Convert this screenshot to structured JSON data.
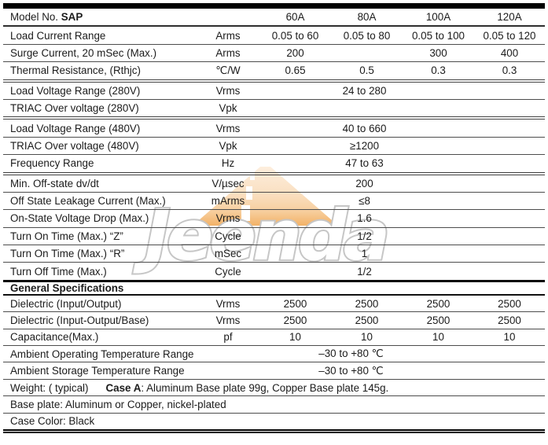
{
  "watermark": {
    "text": "Jeenda",
    "stroke_color": "#c6c6c6",
    "road_color_top": "#fdeedd",
    "road_color_bottom": "#f2b267"
  },
  "table": {
    "rows": [
      {
        "kind": "cols",
        "param_prefix": "Model No. ",
        "param_bold": "SAP",
        "unit": "",
        "values": [
          "60A",
          "80A",
          "100A",
          "120A"
        ],
        "section": "sa",
        "border": "medium"
      },
      {
        "kind": "cols",
        "param": "Load Current Range",
        "unit": "Arms",
        "values": [
          "0.05 to 60",
          "0.05 to 80",
          "0.05 to 100",
          "0.05 to 120"
        ],
        "section": "sa",
        "border": "thin"
      },
      {
        "kind": "cols",
        "param": "Surge Current, 20 mSec (Max.)",
        "unit": "Arms",
        "values": [
          "200",
          "",
          "300",
          "400"
        ],
        "section": "sa",
        "border": "thin"
      },
      {
        "kind": "cols",
        "param": "Thermal Resistance, (Rthjc)",
        "unit": "℃/W",
        "values": [
          "0.65",
          "0.5",
          "0.3",
          "0.3"
        ],
        "section": "sa",
        "border": "double"
      },
      {
        "kind": "span4",
        "param": "Load Voltage Range (280V)",
        "unit": "Vrms",
        "value": "24 to 280",
        "section": "sa",
        "border": "thin"
      },
      {
        "kind": "span4",
        "param": "TRIAC Over voltage (280V)",
        "unit": "Vpk",
        "value": "",
        "section": "sa",
        "border": "double"
      },
      {
        "kind": "span4",
        "param": "Load Voltage Range (480V)",
        "unit": "Vrms",
        "value": "40 to 660",
        "section": "sa",
        "border": "thin"
      },
      {
        "kind": "span4",
        "param": "TRIAC Over voltage (480V)",
        "unit": "Vpk",
        "value": "≥1200",
        "section": "sa",
        "border": "thin"
      },
      {
        "kind": "span4",
        "param": "Frequency Range",
        "unit": "Hz",
        "value": "47 to 63",
        "section": "sa",
        "border": "double"
      },
      {
        "kind": "span4",
        "param": "Min. Off-state dv/dt",
        "unit": "V/µsec",
        "value": "200",
        "section": "sa",
        "border": "thin"
      },
      {
        "kind": "span4",
        "param": "Off State Leakage Current (Max.)",
        "unit": "mArms",
        "value": "≤8",
        "section": "sa",
        "border": "thin"
      },
      {
        "kind": "span4",
        "param": "On-State Voltage Drop (Max.)",
        "unit": "Vrms",
        "value": "1.6",
        "section": "sa",
        "border": "thin"
      },
      {
        "kind": "span4",
        "param": "Turn On Time (Max.) “Z”",
        "unit": "Cycle",
        "value": "1/2",
        "section": "sa",
        "border": "thin"
      },
      {
        "kind": "span4",
        "param": "Turn On Time (Max.) “R”",
        "unit": "mSec",
        "value": "1",
        "section": "sa",
        "border": "thin"
      },
      {
        "kind": "span4",
        "param": "Turn Off Time (Max.)",
        "unit": "Cycle",
        "value": "1/2",
        "section": "sa",
        "border": "thick"
      },
      {
        "kind": "header",
        "text": "General Specifications",
        "section": "gh",
        "border": "gsline"
      },
      {
        "kind": "cols",
        "param": "Dielectric (Input/Output)",
        "unit": "Vrms",
        "values": [
          "2500",
          "2500",
          "2500",
          "2500"
        ],
        "section": "sb",
        "border": "thin"
      },
      {
        "kind": "cols",
        "param": "Dielectric (Input-Output/Base)",
        "unit": "Vrms",
        "values": [
          "2500",
          "2500",
          "2500",
          "2500"
        ],
        "section": "sb",
        "border": "thin"
      },
      {
        "kind": "cols",
        "param": "Capacitance(Max.)",
        "unit": "pf",
        "values": [
          "10",
          "10",
          "10",
          "10"
        ],
        "section": "sb",
        "border": "thin"
      },
      {
        "kind": "span5",
        "param": "Ambient Operating Temperature Range",
        "value": "–30 to +80 ℃",
        "section": "sb",
        "border": "thin"
      },
      {
        "kind": "span5",
        "param": "Ambient Storage Temperature Range",
        "value": "–30 to +80 ℃",
        "section": "sb",
        "border": "thin"
      },
      {
        "kind": "full",
        "text": "Weight: ( typical)",
        "bold": "Case A",
        "rest": ": Aluminum Base plate 99g, Copper Base plate 145g.",
        "section": "sb",
        "border": "thin"
      },
      {
        "kind": "full",
        "text": "Base plate: Aluminum or Copper, nickel-plated",
        "section": "sb",
        "border": "thin"
      },
      {
        "kind": "full",
        "text": "Case Color: Black",
        "section": "sb",
        "border": "final"
      }
    ]
  }
}
